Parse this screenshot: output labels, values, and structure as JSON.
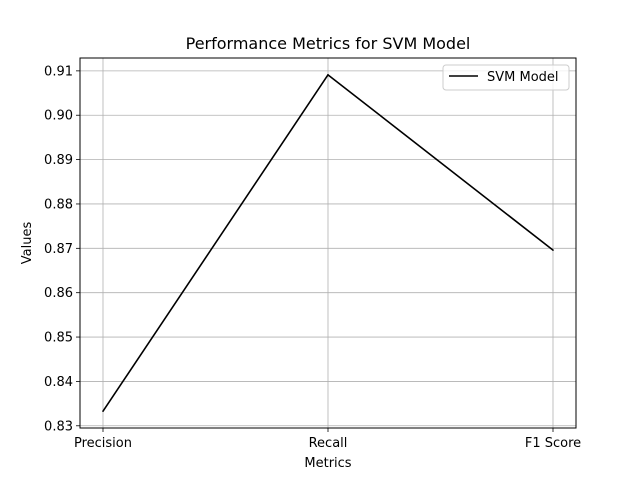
{
  "chart_data": {
    "type": "line",
    "title": "Performance Metrics for SVM Model",
    "xlabel": "Metrics",
    "ylabel": "Values",
    "categories": [
      "Precision",
      "Recall",
      "F1 Score"
    ],
    "series": [
      {
        "name": "SVM Model",
        "values": [
          0.8333,
          0.9091,
          0.8696
        ],
        "color": "#000000"
      }
    ],
    "ylim": [
      0.8295,
      0.9129
    ],
    "yticks": [
      0.83,
      0.84,
      0.85,
      0.86,
      0.87,
      0.88,
      0.89,
      0.9,
      0.91
    ],
    "ytick_labels": [
      "0.83",
      "0.84",
      "0.85",
      "0.86",
      "0.87",
      "0.88",
      "0.89",
      "0.90",
      "0.91"
    ],
    "grid": true,
    "legend_position": "top-right"
  }
}
